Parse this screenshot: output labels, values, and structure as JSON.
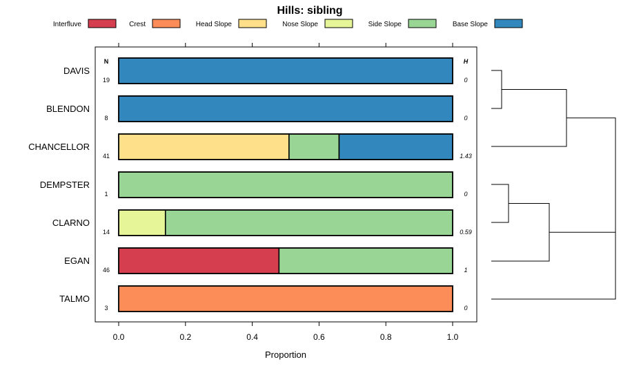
{
  "chart_data": {
    "type": "bar",
    "orientation": "horizontal-stacked",
    "title": "Hills: sibling",
    "xlabel": "Proportion",
    "ylabel": "",
    "xlim": [
      0,
      1
    ],
    "xticks": [
      "0.0",
      "0.2",
      "0.4",
      "0.6",
      "0.8",
      "1.0"
    ],
    "n_header": "N",
    "h_header": "H",
    "series": [
      {
        "name": "Interfluve",
        "color": "#d53e4f"
      },
      {
        "name": "Crest",
        "color": "#fc8d59"
      },
      {
        "name": "Head Slope",
        "color": "#fee08b"
      },
      {
        "name": "Nose Slope",
        "color": "#e6f598"
      },
      {
        "name": "Side Slope",
        "color": "#99d594"
      },
      {
        "name": "Base Slope",
        "color": "#3288bd"
      }
    ],
    "categories": [
      {
        "name": "DAVIS",
        "n": "19",
        "h": "0",
        "values": [
          0,
          0,
          0,
          0,
          0,
          1.0
        ]
      },
      {
        "name": "BLENDON",
        "n": "8",
        "h": "0",
        "values": [
          0,
          0,
          0,
          0,
          0,
          1.0
        ]
      },
      {
        "name": "CHANCELLOR",
        "n": "41",
        "h": "1.43",
        "values": [
          0,
          0,
          0.51,
          0,
          0.15,
          0.34
        ]
      },
      {
        "name": "DEMPSTER",
        "n": "1",
        "h": "0",
        "values": [
          0,
          0,
          0,
          0,
          1.0,
          0
        ]
      },
      {
        "name": "CLARNO",
        "n": "14",
        "h": "0.59",
        "values": [
          0,
          0,
          0,
          0.14,
          0.86,
          0
        ]
      },
      {
        "name": "EGAN",
        "n": "46",
        "h": "1",
        "values": [
          0.48,
          0,
          0,
          0,
          0.52,
          0
        ]
      },
      {
        "name": "TALMO",
        "n": "3",
        "h": "0",
        "values": [
          0,
          1.0,
          0,
          0,
          0,
          0
        ]
      }
    ]
  }
}
